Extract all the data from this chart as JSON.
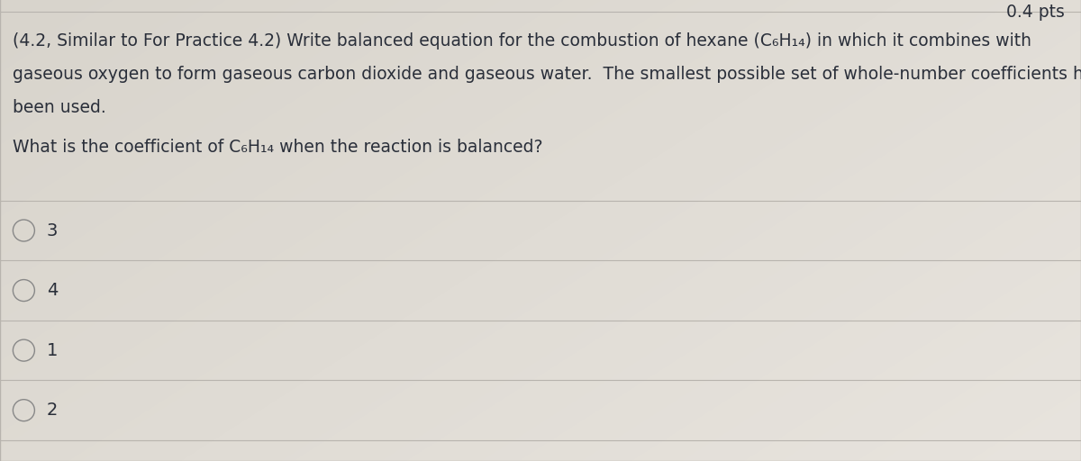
{
  "bg_color_top_left": "#d8d4cc",
  "bg_color_bottom_right": "#e8e4de",
  "top_right_text": "0.4 pts",
  "question_text_line1": "(4.2, Similar to For Practice 4.2) Write balanced equation for the combustion of hexane (C₆H₁₄) in which it combines with",
  "question_text_line2": "gaseous oxygen to form gaseous carbon dioxide and gaseous water.  The smallest possible set of whole-number coefficients has",
  "question_text_line3": "been used.",
  "sub_question": "What is the coefficient of C₆H₁₄ when the reaction is balanced?",
  "options": [
    "3",
    "4",
    "1",
    "2"
  ],
  "text_color": "#2a2f3a",
  "divider_color": "#b8b4ae",
  "circle_color": "#888888",
  "pts_color": "#2a2f3a",
  "font_size_question": 13.5,
  "font_size_options": 14.0,
  "font_size_pts": 13.5
}
